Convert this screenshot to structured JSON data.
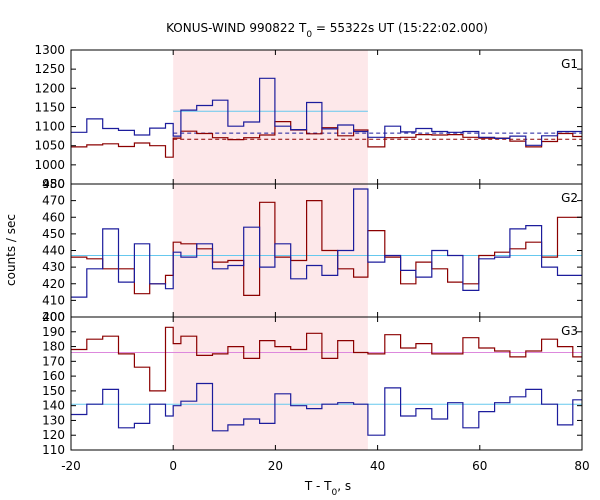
{
  "chart_data": {
    "type": "line",
    "title": {
      "main": "KONUS-WIND 990822 T",
      "sub": "0",
      "rest": " = 55322s UT (15:22:02.000)"
    },
    "xlabel": {
      "main": "T - T",
      "sub": "0",
      "rest": ", s"
    },
    "ylabel": "counts / sec",
    "xlim": [
      -20,
      80
    ],
    "x_ticks": [
      "-20",
      "0",
      "20",
      "40",
      "60",
      "80"
    ],
    "shaded_interval": [
      0,
      38.1
    ],
    "colors": {
      "red": "#8b0000",
      "blue": "#1c1c9c",
      "bg_cyan": "#66c8ee",
      "bg_pink": "#dd88dd",
      "shade": "#fde8ea"
    },
    "bin_edges": [
      -20,
      -16.9,
      -13.8,
      -10.7,
      -7.6,
      -4.6,
      -1.5,
      0,
      1.5,
      4.6,
      7.7,
      10.7,
      13.8,
      16.9,
      19.9,
      23.0,
      26.1,
      29.1,
      32.2,
      35.3,
      38.1,
      41.4,
      44.5,
      47.5,
      50.6,
      53.7,
      56.7,
      59.8,
      62.9,
      65.9,
      69.0,
      72.1,
      75.2,
      78.2,
      80
    ],
    "panels": [
      {
        "label": "G1",
        "ylim": [
          950,
          1300
        ],
        "y_ticks": [
          "950",
          "1000",
          "1050",
          "1100",
          "1150",
          "1200",
          "1250",
          "1300"
        ],
        "background_lines": [
          {
            "color": "bg_cyan",
            "dashed": false,
            "x_range": [
              0,
              38.1
            ],
            "y": 1140
          },
          {
            "color": "blue",
            "dashed": true,
            "x_range": [
              0,
              80
            ],
            "y": 1083
          },
          {
            "color": "red",
            "dashed": true,
            "x_range": [
              0,
              80
            ],
            "y": 1067
          }
        ],
        "series": [
          {
            "color": "red",
            "values": [
              1047,
              1052,
              1055,
              1048,
              1057,
              1050,
              1020,
              1070,
              1088,
              1082,
              1071,
              1066,
              1071,
              1078,
              1113,
              1091,
              1081,
              1097,
              1076,
              1091,
              1047,
              1071,
              1072,
              1079,
              1078,
              1079,
              1072,
              1070,
              1070,
              1062,
              1047,
              1061,
              1082,
              1074
            ]
          },
          {
            "color": "blue",
            "values": [
              1085,
              1120,
              1095,
              1090,
              1078,
              1096,
              1108,
              1075,
              1143,
              1155,
              1169,
              1101,
              1112,
              1226,
              1101,
              1092,
              1163,
              1094,
              1104,
              1087,
              1072,
              1101,
              1086,
              1095,
              1087,
              1085,
              1087,
              1072,
              1069,
              1075,
              1051,
              1076,
              1087,
              1087
            ]
          }
        ]
      },
      {
        "label": "G2",
        "ylim": [
          400,
          480
        ],
        "y_ticks": [
          "400",
          "410",
          "420",
          "430",
          "440",
          "450",
          "460",
          "470",
          "480"
        ],
        "background_lines": [
          {
            "color": "bg_cyan",
            "dashed": false,
            "x_range": [
              -20,
              80
            ],
            "y": 437
          }
        ],
        "series": [
          {
            "color": "red",
            "values": [
              436,
              435,
              429,
              429,
              414,
              420,
              425,
              445,
              444,
              441,
              433,
              434,
              413,
              469,
              436,
              434,
              470,
              440,
              429,
              424,
              452,
              436,
              420,
              433,
              429,
              421,
              420,
              437,
              439,
              441,
              445,
              436,
              460,
              460
            ]
          },
          {
            "color": "blue",
            "values": [
              412,
              429,
              453,
              421,
              444,
              420,
              417,
              439,
              436,
              444,
              429,
              431,
              454,
              430,
              444,
              423,
              431,
              425,
              440,
              477,
              433,
              437,
              428,
              424,
              440,
              437,
              416,
              435,
              436,
              453,
              455,
              430,
              425,
              425
            ]
          }
        ]
      },
      {
        "label": "G3",
        "ylim": [
          110,
          200
        ],
        "y_ticks": [
          "110",
          "120",
          "130",
          "140",
          "150",
          "160",
          "170",
          "180",
          "190",
          "200"
        ],
        "background_lines": [
          {
            "color": "bg_pink",
            "dashed": false,
            "x_range": [
              -20,
              80
            ],
            "y": 176
          },
          {
            "color": "bg_cyan",
            "dashed": false,
            "x_range": [
              -20,
              80
            ],
            "y": 141
          }
        ],
        "series": [
          {
            "color": "red",
            "values": [
              178,
              185,
              187,
              175,
              166,
              150,
              193,
              182,
              187,
              174,
              175,
              180,
              172,
              184,
              180,
              178,
              189,
              172,
              184,
              176,
              175,
              188,
              179,
              182,
              175,
              175,
              186,
              179,
              177,
              173,
              177,
              185,
              180,
              173
            ]
          },
          {
            "color": "blue",
            "values": [
              134,
              141,
              151,
              125,
              128,
              141,
              133,
              140,
              143,
              155,
              123,
              127,
              131,
              128,
              148,
              140,
              138,
              141,
              142,
              141,
              120,
              152,
              133,
              138,
              131,
              142,
              125,
              136,
              142,
              146,
              151,
              141,
              127,
              144
            ]
          }
        ]
      }
    ]
  }
}
